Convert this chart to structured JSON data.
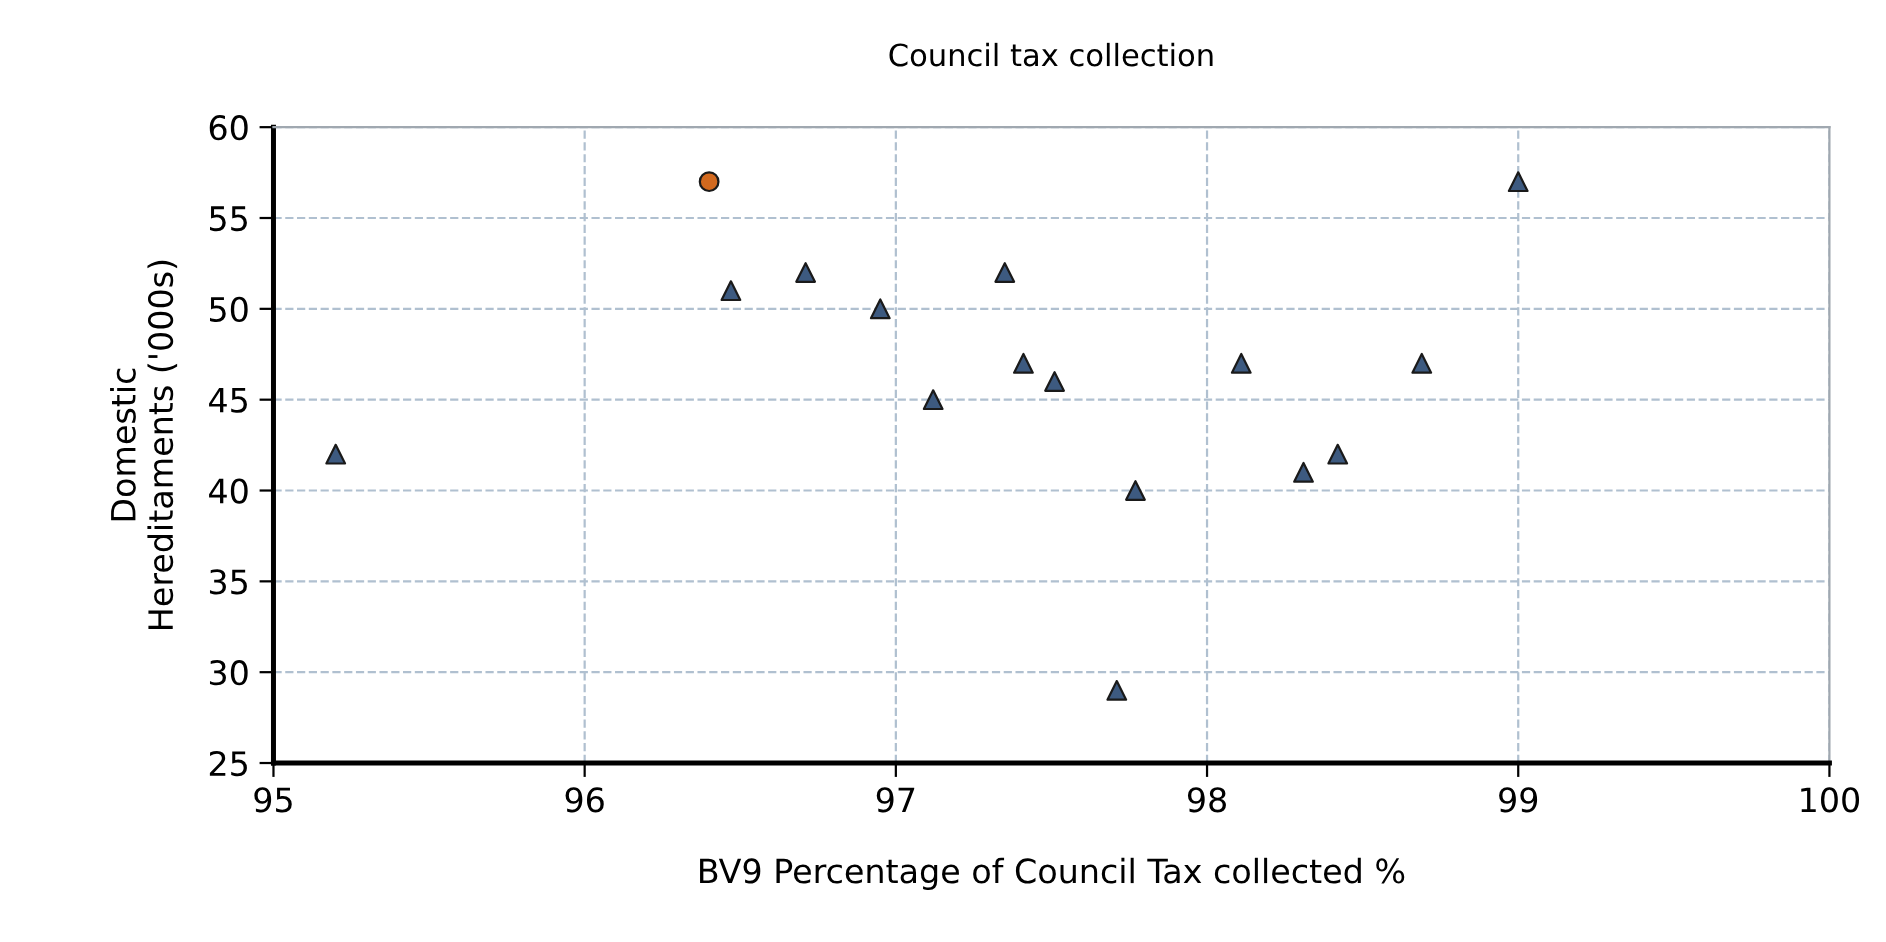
{
  "chart_data": {
    "type": "scatter",
    "title": "Council tax collection",
    "xlabel": "BV9 Percentage of Council Tax collected %",
    "ylabel": "Domestic\nHereditaments ('000s)",
    "series": [
      {
        "color": "#3d5a80",
        "marker": "triangle",
        "x": [
          95.2,
          96.47,
          96.71,
          96.95,
          97.12,
          97.35,
          97.41,
          97.51,
          97.77,
          97.71,
          98.11,
          98.31,
          98.42,
          98.69,
          99.0
        ],
        "values": [
          42,
          51,
          52,
          50,
          45,
          52,
          47,
          46,
          40,
          29,
          47,
          41,
          42,
          47,
          57
        ]
      },
      {
        "color": "#d2691e",
        "marker": "circle",
        "x": [
          96.4
        ],
        "values": [
          57
        ]
      }
    ],
    "xlim": [
      95,
      100
    ],
    "xticks": [
      95,
      96,
      97,
      98,
      99,
      100
    ],
    "ylim": [
      25,
      60
    ],
    "yticks": [
      25,
      30,
      35,
      40,
      45,
      50,
      55,
      60
    ],
    "grid": true,
    "legend": false
  }
}
